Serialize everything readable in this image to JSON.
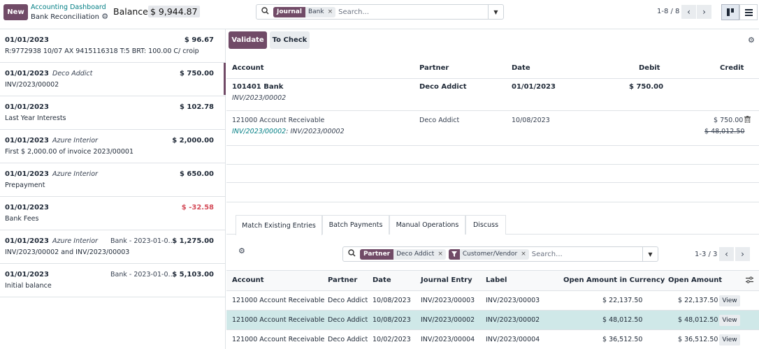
{
  "header": {
    "new_label": "New",
    "breadcrumb_parent": "Accounting Dashboard",
    "breadcrumb_current": "Bank Reconciliation",
    "balance_label": "Balance:",
    "balance_value": "$ 9,944.87"
  },
  "search": {
    "facet_key": "Journal",
    "facet_value": "Bank",
    "placeholder": "Search..."
  },
  "pager": {
    "text": "1-8 / 8"
  },
  "statements": [
    {
      "date": "01/01/2023",
      "partner": "",
      "ref": "",
      "amount": "$ 96.67",
      "negative": false,
      "description": "R:9772938 10/07 AX 9415116318 T:5 BRT: 100.00 C/ croip"
    },
    {
      "date": "01/01/2023",
      "partner": "Deco Addict",
      "ref": "",
      "amount": "$ 750.00",
      "negative": false,
      "description": "INV/2023/00002"
    },
    {
      "date": "01/01/2023",
      "partner": "",
      "ref": "",
      "amount": "$ 102.78",
      "negative": false,
      "description": "Last Year Interests"
    },
    {
      "date": "01/01/2023",
      "partner": "Azure Interior",
      "ref": "",
      "amount": "$ 2,000.00",
      "negative": false,
      "description": "First $ 2,000.00 of invoice 2023/00001"
    },
    {
      "date": "01/01/2023",
      "partner": "Azure Interior",
      "ref": "",
      "amount": "$ 650.00",
      "negative": false,
      "description": "Prepayment"
    },
    {
      "date": "01/01/2023",
      "partner": "",
      "ref": "",
      "amount": "$ -32.58",
      "negative": true,
      "description": "Bank Fees"
    },
    {
      "date": "01/01/2023",
      "partner": "Azure Interior",
      "ref": "Bank - 2023-01-0…",
      "amount": "$ 1,275.00",
      "negative": false,
      "description": "INV/2023/00002 and INV/2023/00003"
    },
    {
      "date": "01/01/2023",
      "partner": "",
      "ref": "Bank - 2023-01-0…",
      "amount": "$ 5,103.00",
      "negative": false,
      "description": "Initial balance"
    }
  ],
  "actions": {
    "validate": "Validate",
    "to_check": "To Check"
  },
  "lines_table": {
    "headers": {
      "account": "Account",
      "partner": "Partner",
      "date": "Date",
      "debit": "Debit",
      "credit": "Credit"
    },
    "row1": {
      "account": "101401 Bank",
      "sub": "INV/2023/00002",
      "partner": "Deco Addict",
      "date": "01/01/2023",
      "debit": "$ 750.00"
    },
    "row2": {
      "account": "121000 Account Receivable",
      "sub_link": "INV/2023/00002",
      "sub_rest": ": INV/2023/00002",
      "partner": "Deco Addict",
      "date": "10/08/2023",
      "credit": "$ 750.00",
      "credit_old": "$ 48,012.50"
    }
  },
  "tabs": [
    "Match Existing Entries",
    "Batch Payments",
    "Manual Operations",
    "Discuss"
  ],
  "match_search": {
    "facet1_key": "Partner",
    "facet1_value": "Deco Addict",
    "facet2_value": "Customer/Vendor",
    "placeholder": "Search...",
    "pager": "1-3 / 3"
  },
  "match_table": {
    "headers": {
      "account": "Account",
      "partner": "Partner",
      "date": "Date",
      "journal_entry": "Journal Entry",
      "label": "Label",
      "open_cur": "Open Amount in Currency",
      "open": "Open Amount"
    },
    "view_label": "View",
    "rows": [
      {
        "account": "121000 Account Receivable",
        "partner": "Deco Addict",
        "date": "10/08/2023",
        "entry": "INV/2023/00003",
        "label": "INV/2023/00003",
        "open_cur": "$ 22,137.50",
        "open": "$ 22,137.50",
        "selected": false
      },
      {
        "account": "121000 Account Receivable",
        "partner": "Deco Addict",
        "date": "10/08/2023",
        "entry": "INV/2023/00002",
        "label": "INV/2023/00002",
        "open_cur": "$ 48,012.50",
        "open": "$ 48,012.50",
        "selected": true
      },
      {
        "account": "121000 Account Receivable",
        "partner": "Deco Addict",
        "date": "10/02/2023",
        "entry": "INV/2023/00004",
        "label": "INV/2023/00004",
        "open_cur": "$ 36,512.50",
        "open": "$ 36,512.50",
        "selected": false
      }
    ]
  },
  "colors": {
    "primary": "#714b67",
    "teal": "#017e84",
    "negative": "#d44c59",
    "selected_row": "#cfe8e8"
  }
}
